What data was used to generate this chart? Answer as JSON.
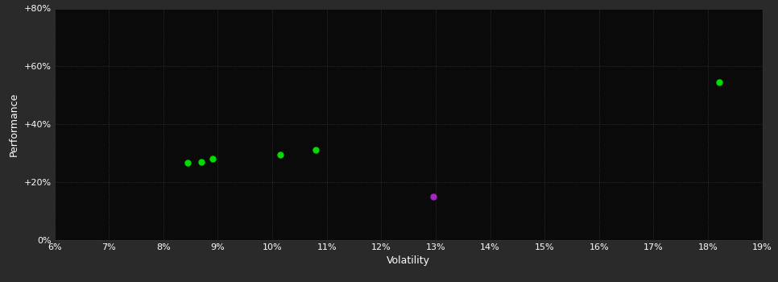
{
  "background_color": "#2a2a2a",
  "plot_bg_color": "#0a0a0a",
  "grid_color": "#3a3a3a",
  "text_color": "#ffffff",
  "xlabel": "Volatility",
  "ylabel": "Performance",
  "xlim": [
    0.06,
    0.19
  ],
  "ylim": [
    0.0,
    0.8
  ],
  "xticks": [
    0.06,
    0.07,
    0.08,
    0.09,
    0.1,
    0.11,
    0.12,
    0.13,
    0.14,
    0.15,
    0.16,
    0.17,
    0.18,
    0.19
  ],
  "yticks": [
    0.0,
    0.2,
    0.4,
    0.6,
    0.8
  ],
  "ytick_labels": [
    "0%",
    "+20%",
    "+40%",
    "+60%",
    "+80%"
  ],
  "xtick_labels": [
    "6%",
    "7%",
    "8%",
    "9%",
    "10%",
    "11%",
    "12%",
    "13%",
    "14%",
    "15%",
    "16%",
    "17%",
    "18%",
    "19%"
  ],
  "green_points": [
    [
      0.0845,
      0.265
    ],
    [
      0.087,
      0.27
    ],
    [
      0.089,
      0.28
    ],
    [
      0.1015,
      0.295
    ],
    [
      0.108,
      0.31
    ],
    [
      0.182,
      0.545
    ]
  ],
  "purple_point": [
    0.1295,
    0.148
  ],
  "green_color": "#00dd00",
  "purple_color": "#aa22cc",
  "point_size": 25
}
